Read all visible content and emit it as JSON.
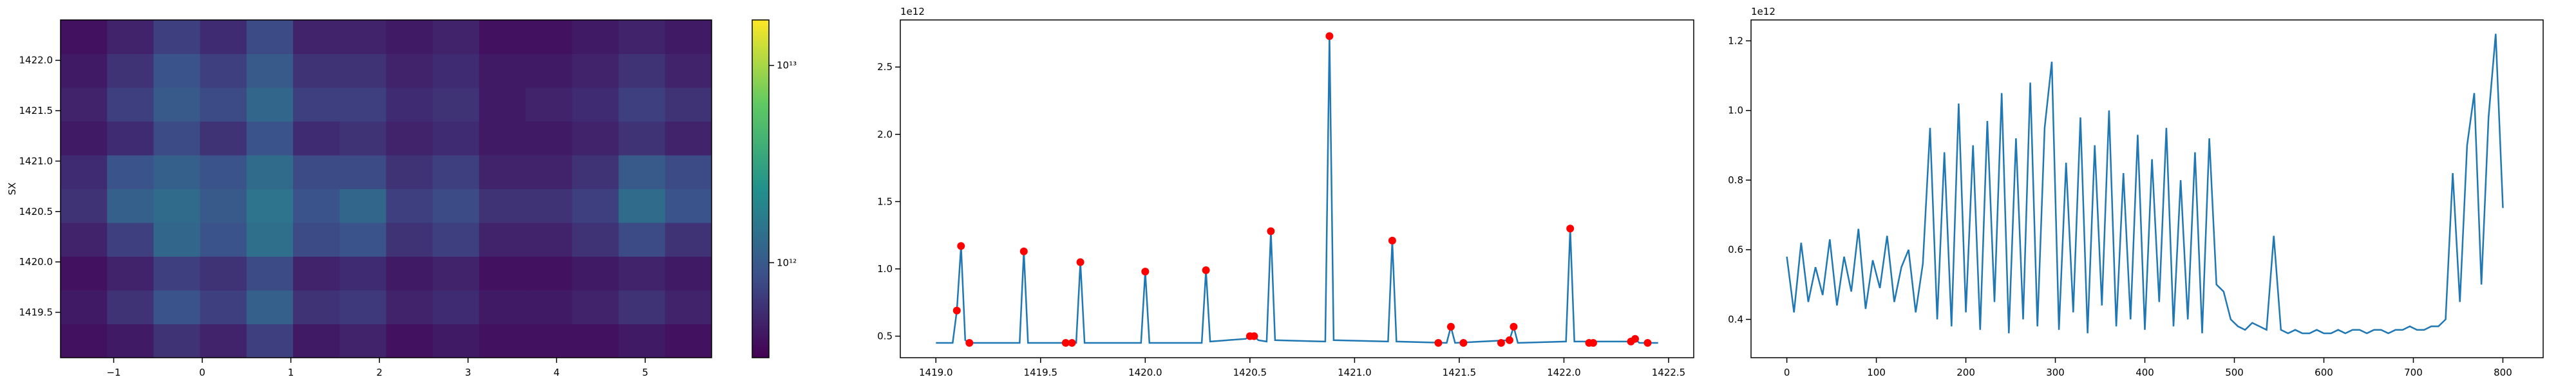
{
  "chart_data": [
    {
      "type": "heatmap",
      "ylabel": "SX",
      "xlim": [
        -1.6,
        5.75
      ],
      "ylim": [
        1419.05,
        1422.4
      ],
      "xticks": [
        {
          "value": -1,
          "label": "−1"
        },
        0,
        1,
        2,
        3,
        4,
        5
      ],
      "yticks": [
        1419.5,
        {
          "value": 1420,
          "label": "1420.0"
        },
        1420.5,
        {
          "value": 1421,
          "label": "1421.0"
        },
        1421.5,
        {
          "value": 1422,
          "label": "1422.0"
        }
      ],
      "colorbar": {
        "log": true,
        "lim": [
          330000000000,
          17000000000000
        ],
        "ticks": [
          {
            "value": 1000000000000,
            "label": "10¹²"
          },
          {
            "value": 10000000000000,
            "label": "10¹³"
          }
        ]
      },
      "z": [
        [
          400000000000.0,
          450000000000.0,
          600000000000.0,
          500000000000.0,
          700000000000.0,
          450000000000.0,
          500000000000.0,
          400000000000.0,
          450000000000.0,
          400000000000.0,
          400000000000.0,
          400000000000.0,
          450000000000.0,
          400000000000.0
        ],
        [
          450000000000.0,
          600000000000.0,
          900000000000.0,
          700000000000.0,
          1100000000000.0,
          600000000000.0,
          650000000000.0,
          500000000000.0,
          550000000000.0,
          450000000000.0,
          450000000000.0,
          500000000000.0,
          600000000000.0,
          500000000000.0
        ],
        [
          400000000000.0,
          500000000000.0,
          700000000000.0,
          600000000000.0,
          800000000000.0,
          500000000000.0,
          550000000000.0,
          450000000000.0,
          500000000000.0,
          400000000000.0,
          400000000000.0,
          450000000000.0,
          500000000000.0,
          450000000000.0
        ],
        [
          500000000000.0,
          700000000000.0,
          1200000000000.0,
          900000000000.0,
          1400000000000.0,
          800000000000.0,
          900000000000.0,
          600000000000.0,
          700000000000.0,
          500000000000.0,
          500000000000.0,
          600000000000.0,
          800000000000.0,
          600000000000.0
        ],
        [
          600000000000.0,
          1100000000000.0,
          1300000000000.0,
          1000000000000.0,
          1500000000000.0,
          900000000000.0,
          1200000000000.0,
          700000000000.0,
          800000000000.0,
          600000000000.0,
          600000000000.0,
          700000000000.0,
          1300000000000.0,
          900000000000.0
        ],
        [
          550000000000.0,
          900000000000.0,
          1100000000000.0,
          900000000000.0,
          1300000000000.0,
          800000000000.0,
          800000000000.0,
          600000000000.0,
          700000000000.0,
          500000000000.0,
          500000000000.0,
          600000000000.0,
          1000000000000.0,
          800000000000.0
        ],
        [
          450000000000.0,
          550000000000.0,
          800000000000.0,
          600000000000.0,
          900000000000.0,
          550000000000.0,
          600000000000.0,
          500000000000.0,
          550000000000.0,
          450000000000.0,
          450000000000.0,
          500000000000.0,
          600000000000.0,
          500000000000.0
        ],
        [
          500000000000.0,
          700000000000.0,
          1000000000000.0,
          800000000000.0,
          1200000000000.0,
          700000000000.0,
          700000000000.0,
          550000000000.0,
          600000000000.0,
          450000000000.0,
          500000000000.0,
          550000000000.0,
          700000000000.0,
          600000000000.0
        ],
        [
          450000000000.0,
          600000000000.0,
          900000000000.0,
          700000000000.0,
          1000000000000.0,
          600000000000.0,
          600000000000.0,
          500000000000.0,
          550000000000.0,
          450000000000.0,
          450000000000.0,
          500000000000.0,
          600000000000.0,
          500000000000.0
        ],
        [
          400000000000.0,
          500000000000.0,
          700000000000.0,
          550000000000.0,
          800000000000.0,
          500000000000.0,
          500000000000.0,
          450000000000.0,
          500000000000.0,
          400000000000.0,
          400000000000.0,
          450000000000.0,
          500000000000.0,
          450000000000.0
        ]
      ]
    },
    {
      "type": "line",
      "y_offset_label": "1e12",
      "color": "#1f77b4",
      "xlim": [
        1418.83,
        1422.62
      ],
      "ylim": [
        0.34,
        2.85
      ],
      "xticks": [
        {
          "value": 1419,
          "label": "1419.0"
        },
        1419.5,
        {
          "value": 1420,
          "label": "1420.0"
        },
        1420.5,
        {
          "value": 1421,
          "label": "1421.0"
        },
        1421.5,
        {
          "value": 1422,
          "label": "1422.0"
        },
        1422.5
      ],
      "yticks": [
        0.5,
        {
          "value": 1,
          "label": "1.0"
        },
        1.5,
        {
          "value": 2,
          "label": "2.0"
        },
        2.5
      ],
      "x": [
        1419.0,
        1419.08,
        1419.1,
        1419.12,
        1419.14,
        1419.16,
        1419.4,
        1419.42,
        1419.44,
        1419.67,
        1419.69,
        1419.71,
        1419.98,
        1420.0,
        1420.02,
        1420.27,
        1420.29,
        1420.31,
        1420.48,
        1420.5,
        1420.52,
        1420.54,
        1420.58,
        1420.6,
        1420.62,
        1420.86,
        1420.88,
        1420.9,
        1421.16,
        1421.18,
        1421.2,
        1421.44,
        1421.46,
        1421.48,
        1421.74,
        1421.76,
        1421.78,
        1422.01,
        1422.03,
        1422.05,
        1422.32,
        1422.34,
        1422.36,
        1422.45
      ],
      "values": [
        0.45,
        0.45,
        0.69,
        1.17,
        0.47,
        0.45,
        0.45,
        1.13,
        0.45,
        0.45,
        1.05,
        0.45,
        0.45,
        0.98,
        0.45,
        0.45,
        0.99,
        0.46,
        0.48,
        0.5,
        0.5,
        0.47,
        0.46,
        1.28,
        0.47,
        0.46,
        2.73,
        0.47,
        0.46,
        1.21,
        0.46,
        0.45,
        0.57,
        0.45,
        0.47,
        0.57,
        0.45,
        0.46,
        1.3,
        0.46,
        0.46,
        0.48,
        0.45,
        0.45
      ],
      "markers": {
        "color": "#ff0000",
        "x": [
          1419.1,
          1419.12,
          1419.16,
          1419.42,
          1419.62,
          1419.65,
          1419.69,
          1420.0,
          1420.29,
          1420.5,
          1420.52,
          1420.6,
          1420.88,
          1421.18,
          1421.4,
          1421.46,
          1421.52,
          1421.7,
          1421.74,
          1421.76,
          1422.03,
          1422.12,
          1422.14,
          1422.32,
          1422.34,
          1422.4
        ],
        "values": [
          0.69,
          1.17,
          0.45,
          1.13,
          0.45,
          0.45,
          1.05,
          0.98,
          0.99,
          0.5,
          0.5,
          1.28,
          2.73,
          1.21,
          0.45,
          0.57,
          0.45,
          0.45,
          0.47,
          0.57,
          1.3,
          0.45,
          0.45,
          0.46,
          0.48,
          0.45
        ]
      }
    },
    {
      "type": "line",
      "y_offset_label": "1e12",
      "color": "#1f77b4",
      "xlim": [
        -40,
        845
      ],
      "ylim": [
        0.29,
        1.26
      ],
      "xticks": [
        0,
        100,
        200,
        300,
        400,
        500,
        600,
        700,
        800
      ],
      "yticks": [
        0.4,
        0.6,
        0.8,
        {
          "value": 1,
          "label": "1.0"
        },
        1.2
      ],
      "x": [
        0,
        8,
        16,
        24,
        32,
        40,
        48,
        56,
        64,
        72,
        80,
        88,
        96,
        104,
        112,
        120,
        128,
        136,
        144,
        152,
        160,
        168,
        176,
        184,
        192,
        200,
        208,
        216,
        224,
        232,
        240,
        248,
        256,
        264,
        272,
        280,
        288,
        296,
        304,
        312,
        320,
        328,
        336,
        344,
        352,
        360,
        368,
        376,
        384,
        392,
        400,
        408,
        416,
        424,
        432,
        440,
        448,
        456,
        464,
        472,
        480,
        488,
        496,
        504,
        512,
        520,
        528,
        536,
        544,
        552,
        560,
        568,
        576,
        584,
        592,
        600,
        608,
        616,
        624,
        632,
        640,
        648,
        656,
        664,
        672,
        680,
        688,
        696,
        704,
        712,
        720,
        728,
        736,
        744,
        752,
        760,
        768,
        776,
        784,
        792,
        800
      ],
      "values": [
        0.58,
        0.42,
        0.62,
        0.45,
        0.55,
        0.47,
        0.63,
        0.44,
        0.58,
        0.48,
        0.66,
        0.43,
        0.57,
        0.49,
        0.64,
        0.45,
        0.55,
        0.6,
        0.42,
        0.56,
        0.95,
        0.4,
        0.88,
        0.38,
        1.02,
        0.42,
        0.9,
        0.37,
        0.97,
        0.45,
        1.05,
        0.36,
        0.92,
        0.4,
        1.08,
        0.38,
        0.95,
        1.14,
        0.37,
        0.85,
        0.42,
        0.98,
        0.36,
        0.9,
        0.44,
        1.0,
        0.38,
        0.82,
        0.4,
        0.93,
        0.37,
        0.86,
        0.45,
        0.95,
        0.38,
        0.8,
        0.4,
        0.88,
        0.36,
        0.92,
        0.5,
        0.48,
        0.4,
        0.38,
        0.37,
        0.39,
        0.38,
        0.37,
        0.64,
        0.37,
        0.36,
        0.37,
        0.36,
        0.36,
        0.37,
        0.36,
        0.36,
        0.37,
        0.36,
        0.37,
        0.37,
        0.36,
        0.37,
        0.37,
        0.36,
        0.37,
        0.37,
        0.38,
        0.37,
        0.37,
        0.38,
        0.38,
        0.4,
        0.82,
        0.45,
        0.9,
        1.05,
        0.5,
        0.98,
        1.22,
        0.72
      ]
    }
  ]
}
